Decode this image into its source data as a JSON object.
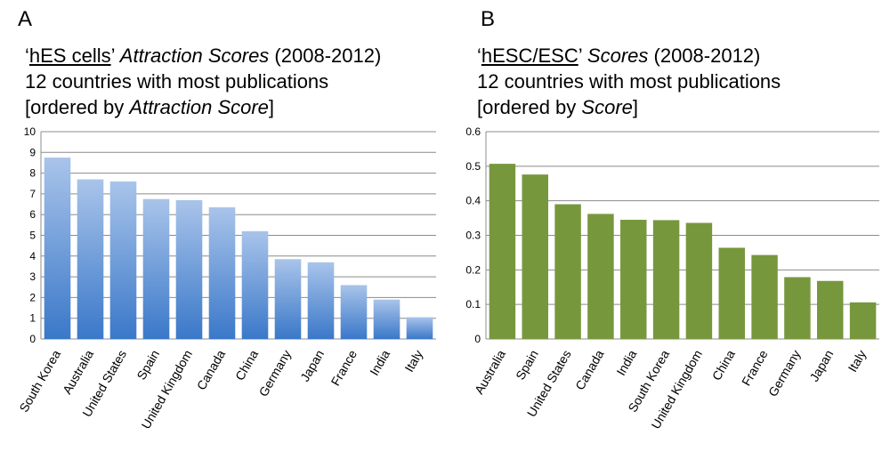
{
  "chart_data": [
    {
      "type": "bar",
      "panel_label": "A",
      "title_parts": {
        "quote_open": "‘",
        "underlined": "hES cells",
        "quote_close": "’ ",
        "italic": "Attraction Scores",
        "rest": " (2008-2012)"
      },
      "subtitle": "12 countries with most publications",
      "ordered_by": {
        "prefix": "[ordered by ",
        "italic": "Attraction Score",
        "suffix": "]"
      },
      "categories": [
        "South Korea",
        "Australia",
        "United States",
        "Spain",
        "United Kingdom",
        "Canada",
        "China",
        "Germany",
        "Japan",
        "France",
        "India",
        "Italy"
      ],
      "values": [
        8.75,
        7.7,
        7.6,
        6.75,
        6.7,
        6.35,
        5.2,
        3.85,
        3.7,
        2.6,
        1.9,
        1.05
      ],
      "ylim": [
        0,
        10
      ],
      "yticks": [
        "0",
        "1",
        "2",
        "3",
        "4",
        "5",
        "6",
        "7",
        "8",
        "9",
        "10"
      ],
      "grid": true,
      "colors": {
        "bar_top": "#a9c4ea",
        "bar_bottom": "#3a78c9"
      }
    },
    {
      "type": "bar",
      "panel_label": "B",
      "title_parts": {
        "quote_open": "‘",
        "underlined": "hESC/ESC",
        "quote_close": "’ ",
        "italic": "Scores",
        "rest": " (2008-2012)"
      },
      "subtitle": "12 countries with most publications",
      "ordered_by": {
        "prefix": "[ordered by ",
        "italic": "Score",
        "suffix": "]"
      },
      "categories": [
        "Australia",
        "Spain",
        "United States",
        "Canada",
        "India",
        "South Korea",
        "United Kingdom",
        "China",
        "France",
        "Germany",
        "Japan",
        "Italy"
      ],
      "values": [
        0.507,
        0.476,
        0.39,
        0.362,
        0.345,
        0.344,
        0.336,
        0.264,
        0.243,
        0.179,
        0.168,
        0.106
      ],
      "ylim": [
        0,
        0.6
      ],
      "yticks": [
        "0",
        "0.1",
        "0.2",
        "0.3",
        "0.4",
        "0.5",
        "0.6"
      ],
      "grid": true,
      "colors": {
        "bar": "#77973d"
      }
    }
  ]
}
